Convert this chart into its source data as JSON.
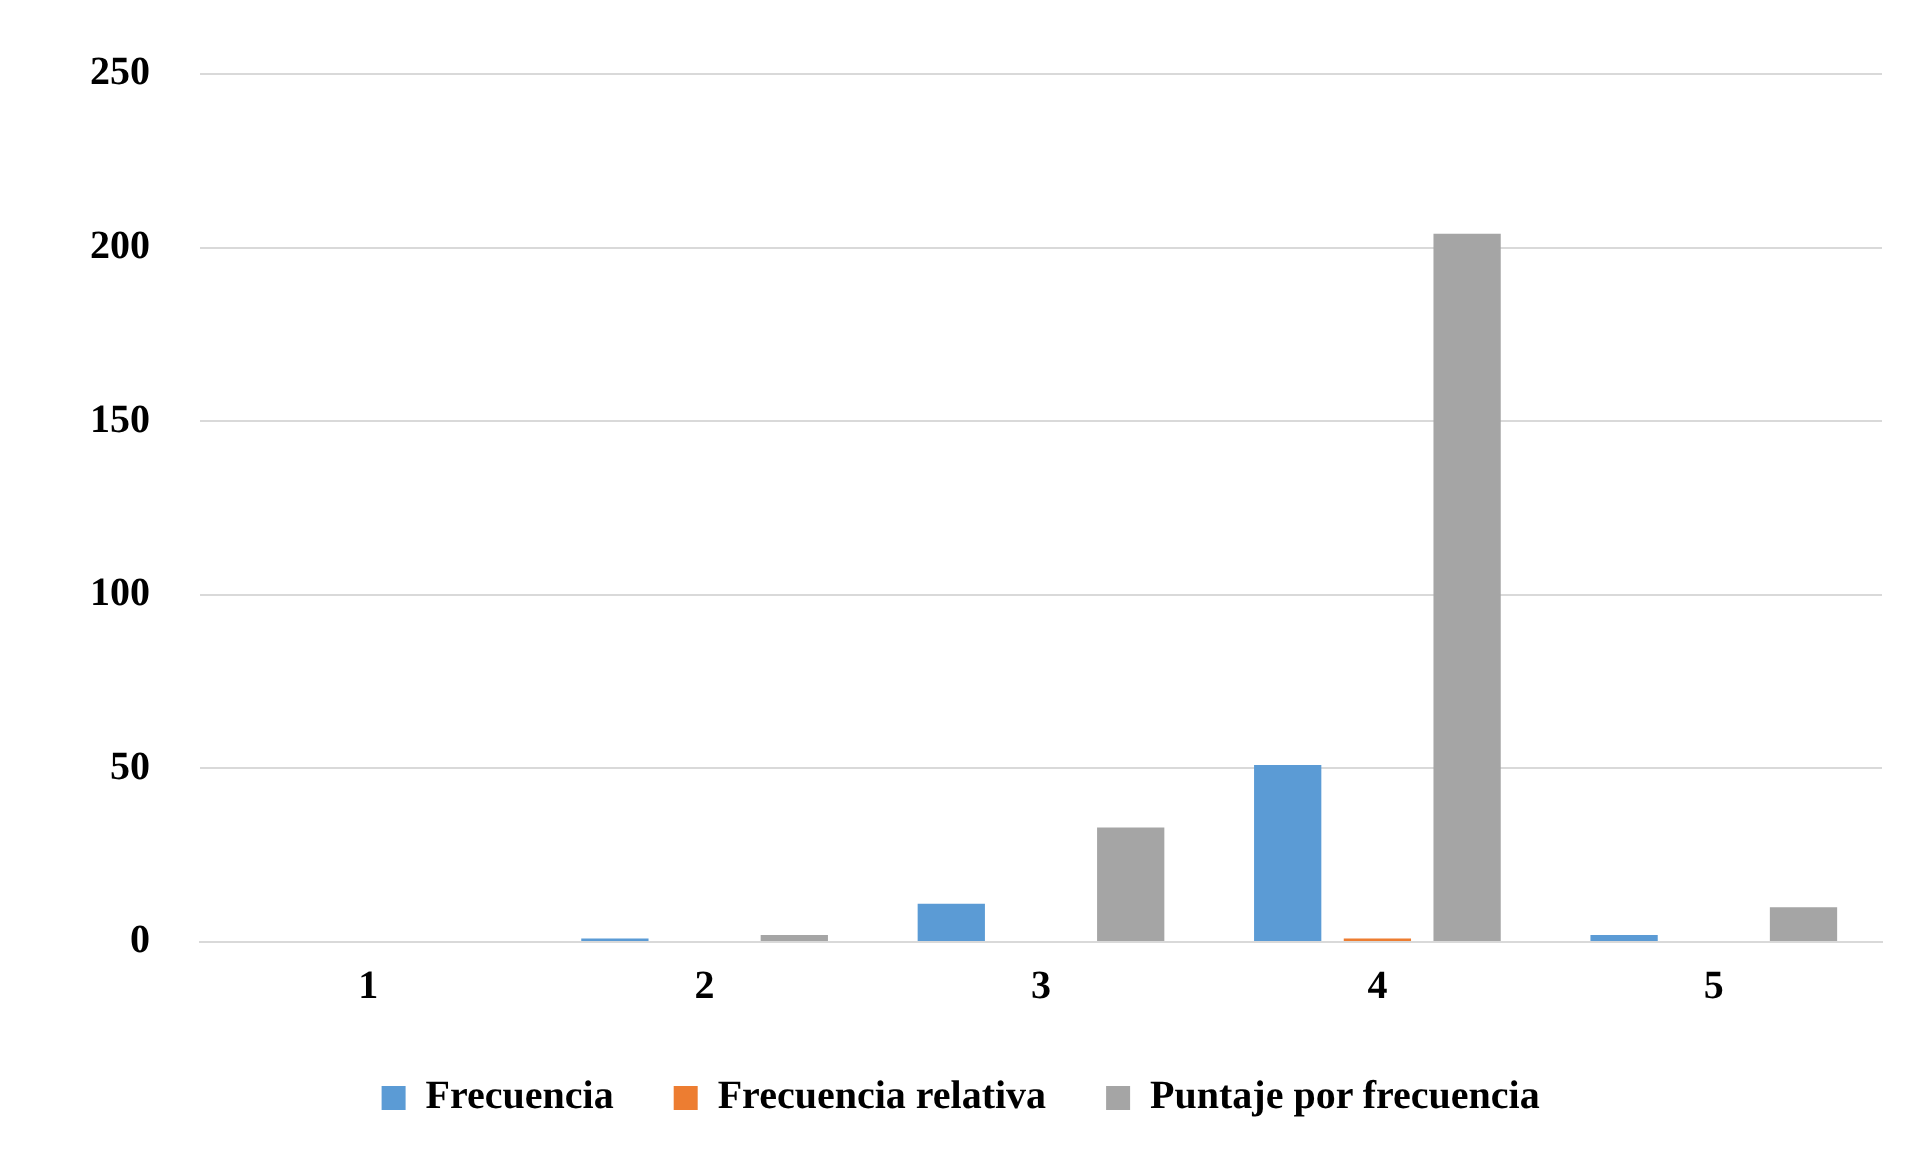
{
  "chart_data": {
    "type": "bar",
    "categories": [
      "1",
      "2",
      "3",
      "4",
      "5"
    ],
    "series": [
      {
        "name": "Frecuencia",
        "color": "#5b9bd5",
        "values": [
          0,
          1,
          11,
          51,
          2
        ]
      },
      {
        "name": "Frecuencia relativa",
        "color": "#ed7d31",
        "values": [
          0,
          0,
          0,
          1,
          0
        ]
      },
      {
        "name": "Puntaje por frecuencia",
        "color": "#a5a5a5",
        "values": [
          0,
          2,
          33,
          204,
          10
        ]
      }
    ],
    "ylim": [
      0,
      250
    ],
    "yticks": [
      0,
      50,
      100,
      150,
      200,
      250
    ],
    "grid": "y",
    "legend": "bottom"
  }
}
